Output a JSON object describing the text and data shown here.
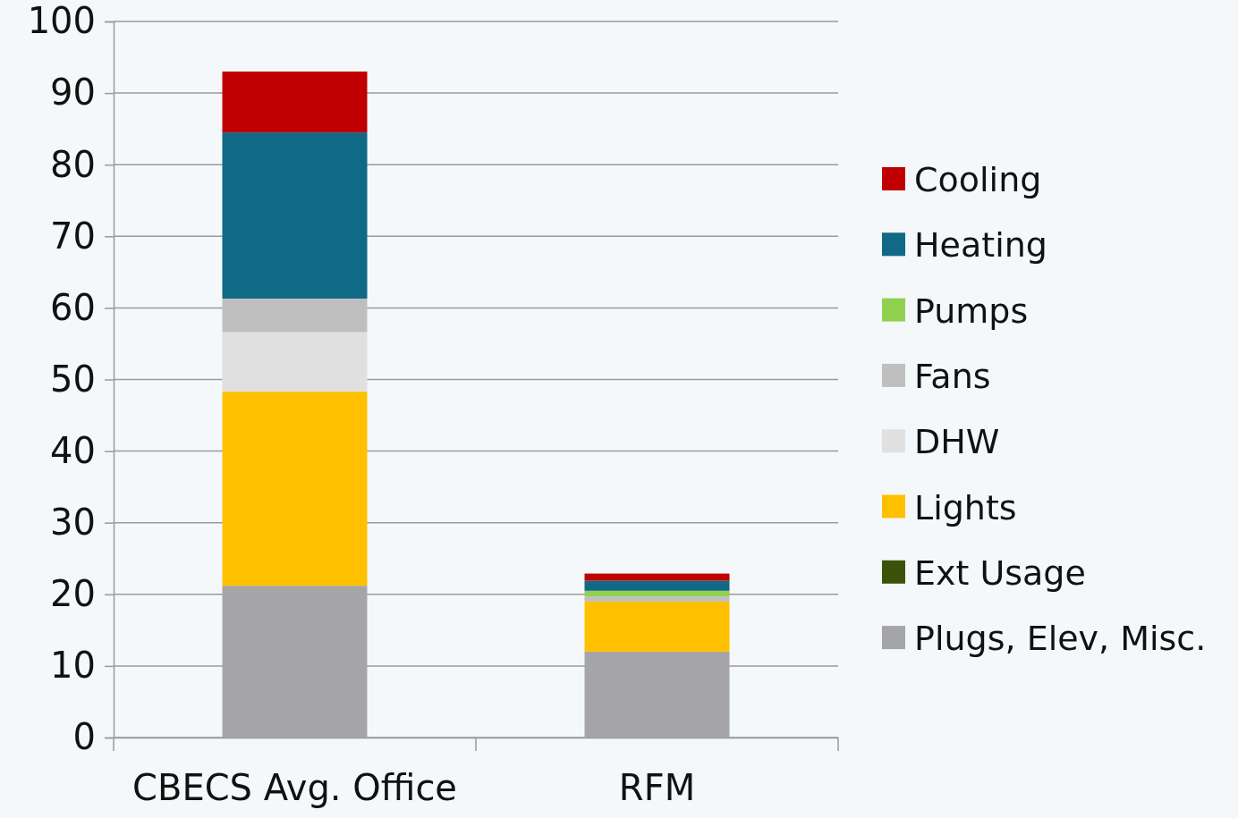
{
  "chart_data": {
    "type": "bar",
    "stacked": true,
    "categories": [
      "CBECS Avg. Office",
      "RFM"
    ],
    "series": [
      {
        "name": "Plugs, Elev, Misc.",
        "color": "#a5a5a8",
        "values": [
          21.2,
          12.0
        ]
      },
      {
        "name": "Ext Usage",
        "color": "#3c5209",
        "values": [
          0,
          0
        ]
      },
      {
        "name": "Lights",
        "color": "#ffc000",
        "values": [
          27.1,
          7.0
        ]
      },
      {
        "name": "DHW",
        "color": "#e0e0e0",
        "values": [
          8.3,
          0
        ]
      },
      {
        "name": "Fans",
        "color": "#bfbfbf",
        "values": [
          4.7,
          0.7
        ]
      },
      {
        "name": "Pumps",
        "color": "#92d050",
        "values": [
          0,
          0.8
        ]
      },
      {
        "name": "Heating",
        "color": "#106985",
        "values": [
          23.2,
          1.4
        ]
      },
      {
        "name": "Cooling",
        "color": "#c00000",
        "values": [
          8.5,
          1.0
        ]
      }
    ],
    "ylim": [
      0,
      100
    ],
    "yticks": [
      0,
      10,
      20,
      30,
      40,
      50,
      60,
      70,
      80,
      90,
      100
    ],
    "grid": "y",
    "legend": "right"
  }
}
